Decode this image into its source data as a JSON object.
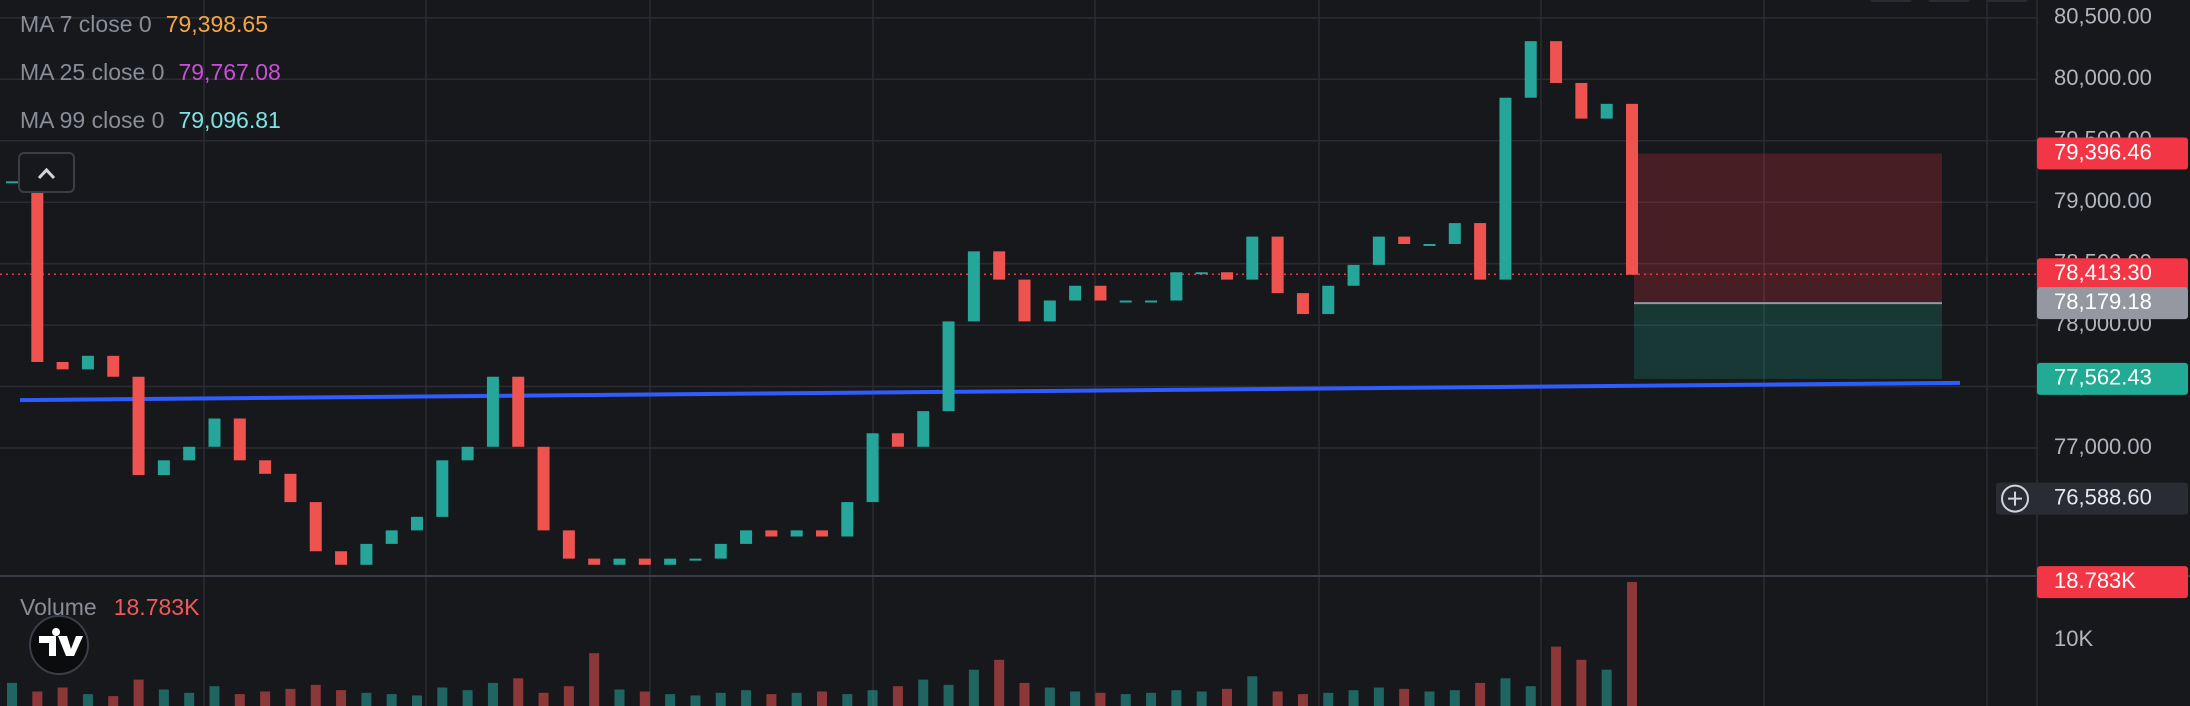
{
  "legend": [
    {
      "name": "MA 7 close 0",
      "value": 79398.65,
      "value_label": "79,398.65",
      "color": "#f6a644"
    },
    {
      "name": "MA 25 close 0",
      "value": 79767.08,
      "value_label": "79,767.08",
      "color": "#c94fd8"
    },
    {
      "name": "MA 99 close 0",
      "value": 79096.81,
      "value_label": "79,096.81",
      "color": "#7fe3e3"
    }
  ],
  "chart_data": {
    "type": "candlestick",
    "up_color": "#26a69a",
    "down_color": "#ef5350",
    "values": [
      79170,
      77700,
      77640,
      77750,
      77580,
      76780,
      76900,
      77010,
      77240,
      76900,
      76790,
      76560,
      76160,
      76050,
      76220,
      76330,
      76440,
      76900,
      77010,
      77580,
      77010,
      76330,
      76100,
      76050,
      76100,
      76050,
      76100,
      76100,
      76220,
      76330,
      76280,
      76330,
      76280,
      76560,
      77120,
      77010,
      77300,
      78030,
      78600,
      78370,
      78030,
      78200,
      78320,
      78200,
      78200,
      78200,
      78430,
      78430,
      78370,
      78720,
      78260,
      78090,
      78320,
      78490,
      78720,
      78660,
      78660,
      78830,
      78370,
      79850,
      80310,
      79970,
      79680,
      79800,
      78410
    ],
    "ylim": [
      75975,
      80645
    ],
    "yticks": [
      {
        "value": 80500,
        "label": "80,500.00"
      },
      {
        "value": 80000,
        "label": "80,000.00"
      },
      {
        "value": 79500,
        "label": "79,500.00"
      },
      {
        "value": 79000,
        "label": "79,000.00"
      },
      {
        "value": 78500,
        "label": "78,500.00"
      },
      {
        "value": 78000,
        "label": "78,000.00"
      },
      {
        "value": 77500,
        "label": "77,500.00"
      },
      {
        "value": 77000,
        "label": "77,000.00"
      }
    ],
    "grid": true,
    "price_badges": [
      {
        "value": 79396.46,
        "label": "79,396.46",
        "color": "#f23645"
      },
      {
        "value": 78413.3,
        "label": "78,413.30",
        "color": "#f23645"
      },
      {
        "value": 78179.18,
        "label": "78,179.18",
        "color": "#9598a1"
      },
      {
        "value": 77562.43,
        "label": "77,562.43",
        "color": "#22ab94"
      },
      {
        "value": 76588.6,
        "label": "76,588.60",
        "color": "#2a2c33"
      }
    ],
    "trendline": {
      "values": [
        77390,
        77530
      ],
      "color": "#2e5cff"
    },
    "volume": {
      "title": "Volume",
      "value": 18783,
      "value_label": "18.783K",
      "values": [
        3500,
        2200,
        2800,
        1800,
        1500,
        4000,
        2500,
        2000,
        3000,
        1800,
        2200,
        2600,
        3200,
        2400,
        2000,
        1800,
        1600,
        2800,
        2400,
        3500,
        4200,
        2000,
        3000,
        8000,
        2500,
        2200,
        1800,
        1600,
        2000,
        2400,
        1800,
        2000,
        2200,
        1800,
        2400,
        3000,
        4000,
        3200,
        5500,
        7000,
        3500,
        2800,
        2200,
        2000,
        1800,
        2000,
        2400,
        2200,
        2600,
        4500,
        2200,
        1800,
        2000,
        2400,
        2800,
        2600,
        2200,
        2400,
        3500,
        4200,
        3000,
        9000,
        7000,
        5500,
        18783
      ],
      "ylim": [
        0,
        19400
      ],
      "yticks": [
        {
          "value": 10000,
          "label": "10K"
        }
      ]
    }
  }
}
